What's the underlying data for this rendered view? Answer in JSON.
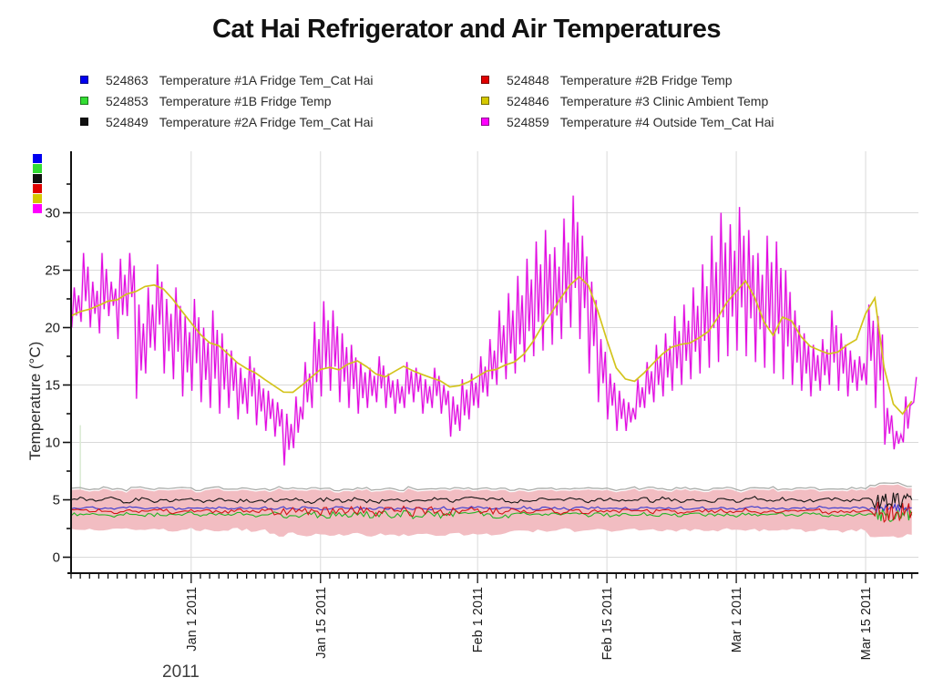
{
  "title": "Cat Hai Refrigerator and Air Temperatures",
  "legend": {
    "items": [
      {
        "id": "524863",
        "label": "Temperature #1A Fridge Tem_Cat Hai",
        "color": "#0000F0"
      },
      {
        "id": "524853",
        "label": "Temperature #1B Fridge Temp",
        "color": "#33DD33"
      },
      {
        "id": "524849",
        "label": "Temperature #2A Fridge Tem_Cat Hai",
        "color": "#111111"
      },
      {
        "id": "524848",
        "label": "Temperature #2B Fridge Temp",
        "color": "#E00000"
      },
      {
        "id": "524846",
        "label": "Temperature #3 Clinic Ambient Temp",
        "color": "#D5C800"
      },
      {
        "id": "524859",
        "label": "Temperature #4 Outside Tem_Cat Hai",
        "color": "#FF00FF"
      }
    ]
  },
  "color_key_stack": [
    "#0000F0",
    "#33DD33",
    "#111111",
    "#E00000",
    "#D5C800",
    "#FF00FF"
  ],
  "chart_data": {
    "type": "line",
    "title": "Cat Hai Refrigerator and Air Temperatures",
    "xlabel": "2011",
    "ylabel": "Temperature (°C)",
    "ylim": [
      0,
      33
    ],
    "grid": true,
    "y_ticks": [
      0,
      5,
      10,
      15,
      20,
      25,
      30
    ],
    "y_minor_step": 2.5,
    "x_axis_note": "day index 0..91; day 0 = chart left edge (~Dec 19 2010); 1 tick per day",
    "x_ticks": {
      "labels": [
        "Jan 1 2011",
        "Jan 15 2011",
        "Feb 1 2011",
        "Feb 15 2011",
        "Mar 1 2011",
        "Mar 15 2011"
      ],
      "days": [
        13,
        27,
        44,
        58,
        72,
        86
      ]
    },
    "spiky_middle_days": [
      22,
      47
    ],
    "burst_days": [
      87,
      91
    ],
    "series": [
      {
        "key": "outside",
        "name": "524859 Temperature #4 Outside Tem_Cat Hai",
        "color": "#E108E1",
        "glow_color": "#F2A3F2",
        "daily_min": [
          20,
          20.5,
          20,
          19.5,
          21,
          19,
          21,
          13.8,
          16,
          18,
          16,
          15.5,
          14,
          14.5,
          13.5,
          13,
          12.5,
          13,
          12,
          12.5,
          11.5,
          11,
          10.5,
          8,
          9.5,
          12,
          13,
          14,
          14.5,
          13.5,
          13,
          12.5,
          13,
          13.5,
          13,
          12.5,
          13,
          13.5,
          12.5,
          13,
          12.5,
          10.5,
          11,
          12,
          13,
          14,
          15,
          15.5,
          16,
          17,
          17.5,
          18,
          18.5,
          19,
          20,
          19,
          16,
          13.5,
          12,
          11,
          11,
          12,
          13,
          13.5,
          14,
          14.5,
          15,
          15.5,
          16,
          16.5,
          17,
          17.5,
          18,
          17.5,
          17,
          16.5,
          16,
          15.5,
          15,
          14.5,
          14,
          14.5,
          15,
          14.5,
          14,
          14.5,
          15,
          13,
          9.8,
          9.4,
          10,
          13.5
        ],
        "daily_max": [
          23.5,
          26.5,
          24,
          26.5,
          24,
          26,
          26.5,
          22,
          23.5,
          25.5,
          22.5,
          23.5,
          21,
          22.5,
          20,
          21.5,
          19.5,
          18,
          16.5,
          17.5,
          15.5,
          14.5,
          13.5,
          12.5,
          14,
          17,
          20.5,
          22.3,
          21.5,
          19.5,
          18.5,
          17,
          16.5,
          17.5,
          16,
          15.5,
          17,
          16.5,
          15.5,
          16.5,
          15,
          14,
          15.5,
          16,
          17.5,
          19,
          21.5,
          23,
          24.5,
          26,
          27.5,
          28.5,
          27,
          29.5,
          31.5,
          28,
          24,
          19,
          16,
          14.5,
          13.5,
          15.5,
          17,
          18.5,
          19.5,
          21,
          22,
          23.5,
          25.5,
          28,
          30,
          29,
          30.5,
          28.5,
          26.5,
          28,
          27.5,
          25,
          21.5,
          19.5,
          18.5,
          19,
          21.5,
          19.5,
          18,
          17.5,
          22,
          21,
          13,
          11,
          14,
          15.7
        ]
      },
      {
        "key": "clinic",
        "name": "524846 Temperature #3 Clinic Ambient Temp",
        "color": "#D3C41C",
        "daily": [
          21,
          21.3,
          21.6,
          21.9,
          22.2,
          22.5,
          22.8,
          23.1,
          23.5,
          23.8,
          23.4,
          22.6,
          21.5,
          20.3,
          19.4,
          18.8,
          18.3,
          17.7,
          17,
          16.4,
          15.9,
          15.4,
          14.9,
          14.4,
          14.3,
          14.9,
          15.8,
          16.3,
          16.5,
          16.3,
          16.7,
          17,
          16.6,
          16.1,
          15.8,
          16.1,
          16.5,
          16.2,
          15.8,
          15.5,
          15.2,
          14.8,
          15,
          15.3,
          15.8,
          16.2,
          16.4,
          16.6,
          17,
          17.8,
          18.8,
          20,
          21.3,
          22.6,
          23.8,
          24.3,
          23.6,
          21.5,
          18.8,
          16.5,
          15.6,
          15.4,
          16,
          16.8,
          17.6,
          18.2,
          18.5,
          18.6,
          19,
          19.8,
          21,
          22.2,
          23,
          24,
          22.5,
          20.5,
          19.4,
          21,
          20.5,
          19.2,
          18.3,
          18,
          17.8,
          18,
          18.5,
          19,
          21.3,
          22.6,
          16.5,
          13.4,
          12.6,
          13.6
        ]
      },
      {
        "key": "fridge_2a",
        "name": "524849 Temperature #2A Fridge Tem_Cat Hai",
        "color": "#141414",
        "wiggle": 0.15,
        "wiggle_mid": 0.18,
        "burst": 0.7,
        "daily": [
          5.0,
          5.1,
          4.9,
          5.0,
          5.2,
          5.0,
          4.8,
          5.0,
          5.1,
          4.9,
          5.0,
          4.9,
          5.1,
          5.0,
          4.8,
          4.9,
          5.1,
          5.0,
          4.9,
          5.0,
          4.8,
          4.9,
          5.0,
          4.9,
          5.1,
          5.0,
          4.8,
          5.0,
          5.1,
          4.9,
          5.0,
          5.1,
          4.9,
          4.8,
          5.0,
          5.1,
          4.9,
          5.0,
          4.8,
          5.0,
          5.1,
          4.9,
          5.0,
          5.2,
          5.0,
          4.9,
          5.1,
          5.0,
          4.8,
          4.9,
          5.0,
          5.1,
          4.9,
          5.0,
          5.2,
          5.1,
          4.9,
          5.0,
          5.1,
          5.0,
          4.9,
          5.0,
          5.1,
          4.9,
          5.2,
          5.0,
          4.9,
          5.1,
          5.0,
          4.8,
          5.0,
          5.1,
          4.9,
          5.0,
          5.2,
          5.0,
          4.9,
          5.1,
          5.0,
          4.9,
          5.0,
          4.9,
          5.1,
          5.0,
          4.9,
          5.0,
          5.1,
          4.9,
          4.8,
          5.0,
          4.9,
          5.0
        ]
      },
      {
        "key": "fridge_1a",
        "name": "524863 Temperature #1A Fridge Tem_Cat Hai",
        "color": "#3939CF",
        "wiggle": 0.1,
        "wiggle_mid": 0.12,
        "burst": 0.3,
        "daily": [
          4.3,
          4.2,
          4.35,
          4.25,
          4.3,
          4.2,
          4.3,
          4.35,
          4.25,
          4.2,
          4.3,
          4.25,
          4.2,
          4.3,
          4.35,
          4.25,
          4.3,
          4.2,
          4.25,
          4.3,
          4.2,
          4.3,
          4.25,
          4.35,
          4.2,
          4.3,
          4.25,
          4.2,
          4.3,
          4.35,
          4.25,
          4.3,
          4.2,
          4.25,
          4.3,
          4.2,
          4.35,
          4.25,
          4.3,
          4.2,
          4.3,
          4.25,
          4.2,
          4.35,
          4.3,
          4.25,
          4.2,
          4.3,
          4.25,
          4.35,
          4.2,
          4.3,
          4.25,
          4.3,
          4.2,
          4.35,
          4.25,
          4.3,
          4.2,
          4.25,
          4.3,
          4.2,
          4.35,
          4.25,
          4.3,
          4.2,
          4.3,
          4.25,
          4.35,
          4.2,
          4.3,
          4.25,
          4.2,
          4.3,
          4.35,
          4.25,
          4.3,
          4.2,
          4.25,
          4.3,
          4.2,
          4.35,
          4.25,
          4.3,
          4.2,
          4.3,
          4.25,
          4.2,
          4.3,
          4.35,
          4.25,
          4.3
        ]
      },
      {
        "key": "fridge_2b",
        "name": "524848 Temperature #2B Fridge Temp",
        "color": "#D01414",
        "wiggle": 0.18,
        "wiggle_mid": 0.4,
        "burst": 0.9,
        "daily": [
          4.0,
          4.1,
          3.95,
          4.05,
          4.0,
          3.9,
          4.05,
          4.1,
          3.95,
          4.0,
          4.05,
          3.9,
          4.0,
          4.1,
          3.95,
          4.05,
          4.0,
          3.95,
          4.1,
          4.0,
          3.9,
          4.05,
          4.0,
          3.95,
          4.1,
          4.0,
          4.05,
          3.9,
          4.0,
          4.05,
          3.95,
          4.1,
          4.0,
          3.9,
          4.05,
          4.0,
          4.1,
          3.95,
          4.0,
          4.05,
          3.9,
          4.0,
          4.1,
          3.95,
          4.05,
          4.0,
          3.9,
          4.05,
          4.0,
          4.1,
          3.95,
          4.0,
          4.05,
          3.9,
          4.1,
          4.0,
          3.95,
          4.05,
          4.0,
          3.9,
          4.05,
          4.0,
          4.1,
          3.95,
          4.0,
          4.05,
          3.9,
          4.0,
          4.1,
          3.95,
          4.05,
          4.0,
          3.95,
          4.1,
          4.0,
          3.9,
          4.05,
          4.0,
          3.95,
          4.05,
          4.0,
          4.1,
          3.9,
          4.0,
          4.05,
          3.95,
          4.1,
          4.0,
          3.95,
          4.05,
          4.0,
          3.95
        ]
      },
      {
        "key": "fridge_1b",
        "name": "524853 Temperature #1B Fridge Temp",
        "color": "#23B523",
        "wiggle": 0.15,
        "wiggle_mid": 0.3,
        "burst": 0.65,
        "daily": [
          3.7,
          3.8,
          3.65,
          3.75,
          3.7,
          3.6,
          3.75,
          3.8,
          3.65,
          3.7,
          3.75,
          3.6,
          3.7,
          3.8,
          3.65,
          3.75,
          3.7,
          3.65,
          3.8,
          3.7,
          3.6,
          3.75,
          3.7,
          3.65,
          3.8,
          3.7,
          3.75,
          3.6,
          3.7,
          3.75,
          3.65,
          3.8,
          3.7,
          3.6,
          3.75,
          3.7,
          3.8,
          3.65,
          3.7,
          3.75,
          3.6,
          3.7,
          3.8,
          3.65,
          3.75,
          3.7,
          3.6,
          3.75,
          3.7,
          3.8,
          3.65,
          3.7,
          3.75,
          3.6,
          3.8,
          3.7,
          3.65,
          3.75,
          3.7,
          3.6,
          3.75,
          3.7,
          3.8,
          3.65,
          3.7,
          3.75,
          3.6,
          3.7,
          3.8,
          3.65,
          3.75,
          3.7,
          3.65,
          3.8,
          3.7,
          3.6,
          3.75,
          3.7,
          3.65,
          3.75,
          3.7,
          3.8,
          3.6,
          3.7,
          3.75,
          3.65,
          3.8,
          3.7,
          3.65,
          3.75,
          3.7,
          3.65
        ]
      },
      {
        "key": "fridge_band",
        "name": "fridge loggers min/max spread band",
        "fill": "#F2BDC2",
        "edge_color": "#A6A8A5",
        "top": [
          5.8,
          5.9,
          5.75,
          5.85,
          5.95,
          5.8,
          5.7,
          5.85,
          5.9,
          5.8,
          5.85,
          5.75,
          5.9,
          5.8,
          5.7,
          5.85,
          5.95,
          5.8,
          5.75,
          5.9,
          5.8,
          5.85,
          5.7,
          5.9,
          5.8,
          5.75,
          5.85,
          5.9,
          5.8,
          5.7,
          5.85,
          5.8,
          5.9,
          5.75,
          5.8,
          5.85,
          5.7,
          5.9,
          5.8,
          5.85,
          5.75,
          5.8,
          5.9,
          5.85,
          5.7,
          5.8,
          5.85,
          5.9,
          5.75,
          5.8,
          5.7,
          5.85,
          5.9,
          5.8,
          5.85,
          5.75,
          5.9,
          5.8,
          5.85,
          5.7,
          5.8,
          5.9,
          5.75,
          5.85,
          5.8,
          5.7,
          5.9,
          5.85,
          5.8,
          5.75,
          5.85,
          5.9,
          5.8,
          5.7,
          5.85,
          5.8,
          5.9,
          5.75,
          5.8,
          5.85,
          5.9,
          5.8,
          5.75,
          5.85,
          5.8,
          5.9,
          5.85,
          6.1,
          6.3,
          6.2,
          6.25,
          6.1
        ],
        "bottom": [
          2.4,
          2.3,
          2.45,
          2.35,
          2.3,
          2.4,
          2.5,
          2.35,
          2.3,
          2.45,
          2.4,
          2.3,
          2.35,
          2.45,
          2.3,
          2.4,
          2.35,
          2.3,
          2.45,
          2.4,
          2.3,
          2.35,
          2.0,
          1.9,
          2.1,
          1.95,
          1.85,
          2.05,
          1.9,
          2.0,
          1.95,
          2.1,
          1.9,
          1.85,
          2.0,
          2.05,
          1.9,
          1.95,
          2.1,
          2.0,
          1.9,
          1.95,
          2.05,
          1.9,
          2.0,
          2.1,
          1.95,
          2.0,
          2.3,
          2.35,
          2.25,
          2.4,
          2.3,
          2.35,
          2.45,
          2.3,
          2.25,
          2.4,
          2.35,
          2.3,
          2.4,
          2.45,
          2.3,
          2.35,
          2.25,
          2.4,
          2.3,
          2.35,
          2.4,
          2.25,
          2.3,
          2.45,
          2.35,
          2.3,
          2.4,
          2.35,
          2.25,
          2.3,
          2.45,
          2.4,
          2.3,
          2.35,
          2.4,
          2.3,
          2.25,
          2.35,
          2.4,
          1.8,
          1.7,
          1.75,
          1.8,
          1.9
        ]
      }
    ]
  }
}
